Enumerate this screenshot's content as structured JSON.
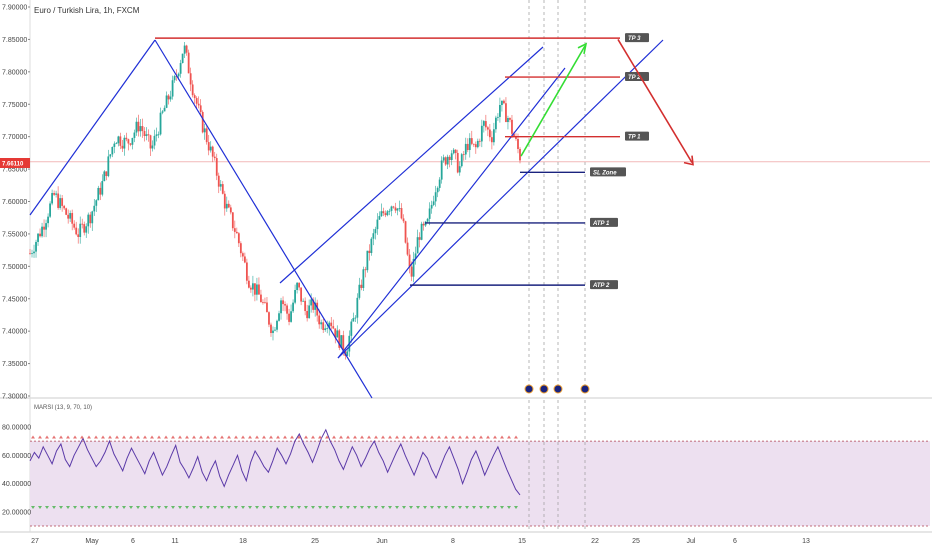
{
  "chart_data": {
    "type": "candlestick",
    "title": "Euro / Turkish Lira, 1h, FXCM",
    "symbol": "EURTRY",
    "last_price": "7.66110",
    "price_axis": {
      "ticks": [
        "7.90000",
        "7.85000",
        "7.80000",
        "7.75000",
        "7.70000",
        "7.65000",
        "7.60000",
        "7.55000",
        "7.50000",
        "7.45000",
        "7.40000",
        "7.35000",
        "7.30000"
      ],
      "range": [
        7.3,
        7.9
      ]
    },
    "time_axis": {
      "ticks": [
        "27",
        "May",
        "6",
        "11",
        "18",
        "25",
        "Jun",
        "8",
        "15",
        "22",
        "25",
        "Jul",
        "6",
        "13"
      ]
    },
    "price_path": [
      [
        0,
        7.52
      ],
      [
        3,
        7.56
      ],
      [
        6,
        7.61
      ],
      [
        9,
        7.58
      ],
      [
        12,
        7.55
      ],
      [
        15,
        7.58
      ],
      [
        18,
        7.63
      ],
      [
        21,
        7.7
      ],
      [
        24,
        7.69
      ],
      [
        27,
        7.72
      ],
      [
        30,
        7.68
      ],
      [
        33,
        7.74
      ],
      [
        36,
        7.79
      ],
      [
        38,
        7.84
      ],
      [
        40,
        7.78
      ],
      [
        42,
        7.73
      ],
      [
        45,
        7.67
      ],
      [
        48,
        7.6
      ],
      [
        51,
        7.55
      ],
      [
        54,
        7.48
      ],
      [
        57,
        7.45
      ],
      [
        60,
        7.4
      ],
      [
        62,
        7.45
      ],
      [
        64,
        7.42
      ],
      [
        66,
        7.47
      ],
      [
        68,
        7.43
      ],
      [
        70,
        7.44
      ],
      [
        72,
        7.41
      ],
      [
        74,
        7.42
      ],
      [
        76,
        7.39
      ],
      [
        78,
        7.37
      ],
      [
        80,
        7.42
      ],
      [
        82,
        7.48
      ],
      [
        84,
        7.53
      ],
      [
        86,
        7.57
      ],
      [
        88,
        7.59
      ],
      [
        90,
        7.6
      ],
      [
        92,
        7.57
      ],
      [
        94,
        7.48
      ],
      [
        96,
        7.55
      ],
      [
        98,
        7.56
      ],
      [
        100,
        7.62
      ],
      [
        102,
        7.66
      ],
      [
        104,
        7.68
      ],
      [
        106,
        7.65
      ],
      [
        108,
        7.69
      ],
      [
        110,
        7.68
      ],
      [
        112,
        7.72
      ],
      [
        114,
        7.7
      ],
      [
        116,
        7.75
      ],
      [
        118,
        7.73
      ],
      [
        120,
        7.69
      ],
      [
        121,
        7.67
      ]
    ],
    "levels": [
      {
        "label": "TP 3",
        "value": 7.852,
        "color": "#d32f2f"
      },
      {
        "label": "TP 2",
        "value": 7.792,
        "color": "#d32f2f"
      },
      {
        "label": "TP 1",
        "value": 7.7,
        "color": "#d32f2f"
      },
      {
        "label": "SL Zone",
        "value": 7.645,
        "color": "#1a237e"
      },
      {
        "label": "ATP 1",
        "value": 7.567,
        "color": "#1a237e"
      },
      {
        "label": "ATP 2",
        "value": 7.471,
        "color": "#1a237e"
      }
    ],
    "projection": {
      "up_from": 7.67,
      "up_to": 7.84,
      "up_color": "#33dd33",
      "down_from": 7.85,
      "down_to": 7.66,
      "down_color": "#d32f2f"
    },
    "indicator": {
      "name": "MARSI (13, 9, 70, 10)",
      "ticks": [
        "80.00000",
        "60.00000",
        "40.00000",
        "20.00000"
      ],
      "range": [
        10,
        92
      ],
      "overbought": 70,
      "oversold": 10,
      "values": [
        56,
        62,
        58,
        66,
        60,
        54,
        63,
        68,
        57,
        52,
        60,
        66,
        72,
        64,
        58,
        52,
        56,
        62,
        70,
        61,
        55,
        49,
        58,
        65,
        59,
        53,
        47,
        56,
        62,
        54,
        46,
        52,
        60,
        67,
        55,
        50,
        44,
        51,
        59,
        48,
        42,
        50,
        56,
        45,
        38,
        46,
        53,
        60,
        49,
        42,
        55,
        63,
        58,
        52,
        48,
        56,
        65,
        60,
        54,
        61,
        70,
        75,
        68,
        62,
        55,
        63,
        72,
        78,
        70,
        64,
        56,
        50,
        58,
        66,
        60,
        52,
        58,
        65,
        70,
        62,
        56,
        48,
        55,
        62,
        68,
        60,
        53,
        46,
        54,
        62,
        58,
        50,
        44,
        52,
        60,
        66,
        58,
        50,
        40,
        48,
        57,
        63,
        55,
        46,
        53,
        60,
        66,
        58,
        50,
        43,
        36,
        32
      ]
    }
  }
}
